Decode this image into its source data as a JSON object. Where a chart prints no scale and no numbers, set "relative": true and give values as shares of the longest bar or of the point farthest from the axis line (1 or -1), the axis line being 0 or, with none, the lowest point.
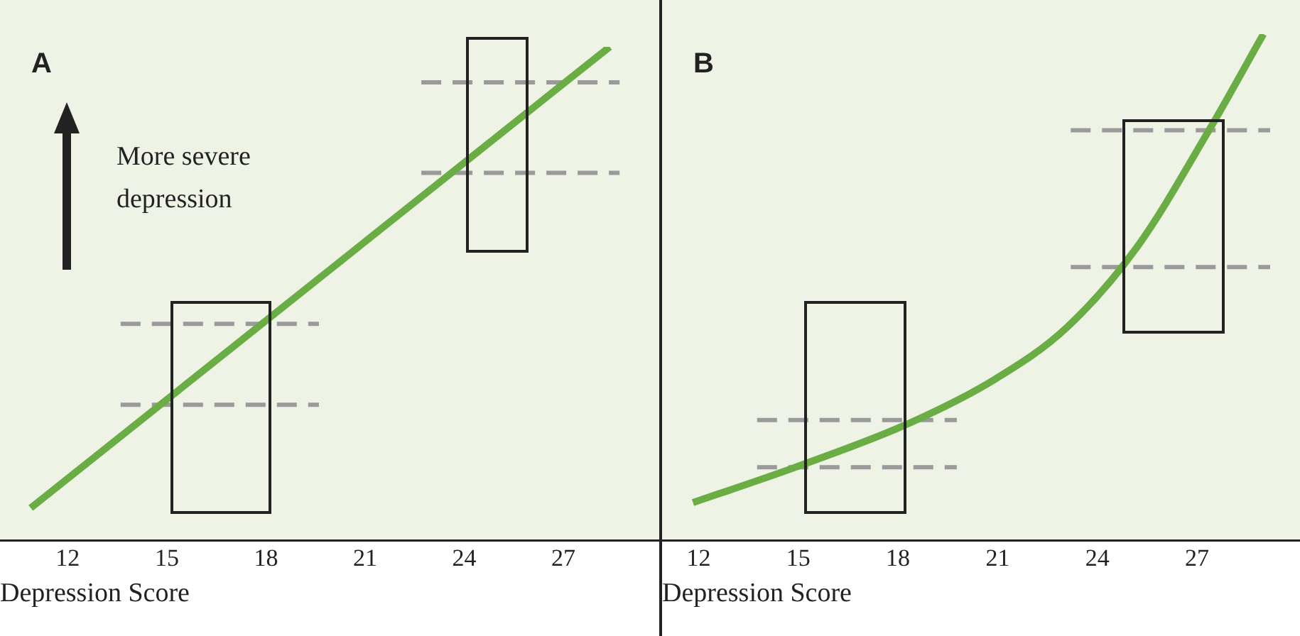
{
  "chart_data": [
    {
      "type": "line",
      "title": "A",
      "xlabel": "Depression Score",
      "xlim": [
        9.95,
        29.9
      ],
      "xticks": [
        12,
        15,
        18,
        21,
        24,
        27
      ],
      "relative": true,
      "annotations": [
        "More severe depression"
      ],
      "series": [
        {
          "color": "#6aad45",
          "x": [
            10.88,
            28.4
          ],
          "values": [
            0.066,
            1
          ]
        },
        {
          "color": "#9a9a9a",
          "line_style": "dashed",
          "x": [
            13.6,
            19.6
          ],
          "values": [
            0.439,
            0.439
          ]
        },
        {
          "color": "#9a9a9a",
          "line_style": "dashed",
          "x": [
            13.6,
            19.6
          ],
          "values": [
            0.275,
            0.275
          ]
        },
        {
          "color": "#9a9a9a",
          "line_style": "dashed",
          "x": [
            22.7,
            28.7
          ],
          "values": [
            0.928,
            0.928
          ]
        },
        {
          "color": "#9a9a9a",
          "line_style": "dashed",
          "x": [
            22.7,
            28.7
          ],
          "values": [
            0.745,
            0.745
          ]
        }
      ]
    },
    {
      "type": "line",
      "title": "B",
      "xlabel": "Depression Score",
      "xlim": [
        10.9,
        30.1
      ],
      "xticks": [
        12,
        15,
        18,
        21,
        24,
        27
      ],
      "relative": true,
      "series": [
        {
          "color": "#6aad45",
          "x": [
            11.83,
            14.92,
            18.35,
            20.93,
            23.07,
            25.2,
            27.36,
            29
          ],
          "values": [
            0.075,
            0.145,
            0.232,
            0.319,
            0.42,
            0.58,
            0.81,
            1
          ]
        },
        {
          "color": "#9a9a9a",
          "line_style": "dashed",
          "x": [
            13.76,
            19.77
          ],
          "values": [
            0.238,
            0.238
          ]
        },
        {
          "color": "#9a9a9a",
          "line_style": "dashed",
          "x": [
            13.76,
            19.77
          ],
          "values": [
            0.145,
            0.145
          ]
        },
        {
          "color": "#9a9a9a",
          "line_style": "dashed",
          "x": [
            23.2,
            29.2
          ],
          "values": [
            0.81,
            0.81
          ]
        },
        {
          "color": "#9a9a9a",
          "line_style": "dashed",
          "x": [
            23.2,
            29.2
          ],
          "values": [
            0.54,
            0.54
          ]
        }
      ]
    }
  ]
}
